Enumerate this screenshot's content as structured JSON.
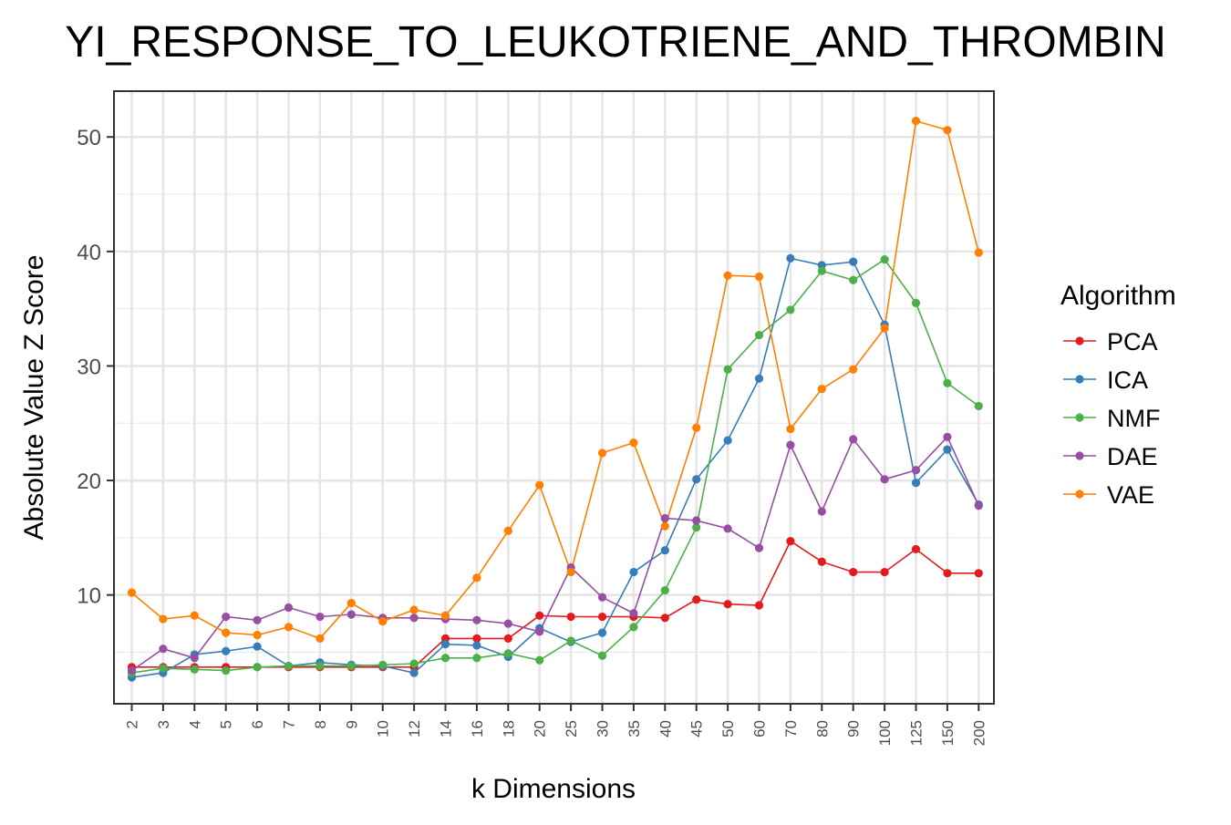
{
  "chart_data": {
    "type": "line",
    "title": "YI_RESPONSE_TO_LEUKOTRIENE_AND_THROMBIN",
    "xlabel": "k Dimensions",
    "ylabel": "Absolute Value Z Score",
    "categories": [
      "2",
      "3",
      "4",
      "5",
      "6",
      "7",
      "8",
      "9",
      "10",
      "12",
      "14",
      "16",
      "18",
      "20",
      "25",
      "30",
      "35",
      "40",
      "45",
      "50",
      "60",
      "70",
      "80",
      "90",
      "100",
      "125",
      "150",
      "200"
    ],
    "y_ticks": [
      10,
      20,
      30,
      40,
      50
    ],
    "ylim": [
      0.5,
      54
    ],
    "grid": true,
    "legend": {
      "title": "Algorithm",
      "position": "right"
    },
    "series": [
      {
        "name": "PCA",
        "color": "#e41a1c",
        "values": [
          3.7,
          3.7,
          3.7,
          3.7,
          3.7,
          3.7,
          3.7,
          3.7,
          3.7,
          3.7,
          6.2,
          6.2,
          6.2,
          8.2,
          8.1,
          8.1,
          8.1,
          8.0,
          9.6,
          9.2,
          9.1,
          14.7,
          12.9,
          12.0,
          12.0,
          14.0,
          11.9,
          11.9
        ]
      },
      {
        "name": "ICA",
        "color": "#377eb8",
        "values": [
          2.8,
          3.2,
          4.8,
          5.1,
          5.5,
          3.8,
          4.1,
          3.9,
          3.8,
          3.2,
          5.7,
          5.6,
          4.6,
          7.1,
          5.9,
          6.7,
          12.0,
          13.9,
          20.1,
          23.5,
          28.9,
          39.4,
          38.8,
          39.1,
          33.6,
          19.8,
          22.7,
          17.9
        ]
      },
      {
        "name": "NMF",
        "color": "#4daf4a",
        "values": [
          3.2,
          3.6,
          3.5,
          3.4,
          3.7,
          3.8,
          3.8,
          3.8,
          3.9,
          4.0,
          4.5,
          4.5,
          4.9,
          4.3,
          6.0,
          4.7,
          7.2,
          10.4,
          15.9,
          29.7,
          32.7,
          34.9,
          38.3,
          37.5,
          39.3,
          35.5,
          28.5,
          26.5
        ]
      },
      {
        "name": "DAE",
        "color": "#984ea3",
        "values": [
          3.4,
          5.3,
          4.5,
          8.1,
          7.8,
          8.9,
          8.1,
          8.3,
          8.0,
          8.0,
          7.9,
          7.8,
          7.5,
          6.8,
          12.4,
          9.8,
          8.4,
          16.7,
          16.5,
          15.8,
          14.1,
          23.1,
          17.3,
          23.6,
          20.1,
          20.9,
          23.8,
          17.8
        ]
      },
      {
        "name": "VAE",
        "color": "#ff7f00",
        "values": [
          10.2,
          7.9,
          8.2,
          6.7,
          6.5,
          7.2,
          6.2,
          9.3,
          7.7,
          8.7,
          8.2,
          11.5,
          15.6,
          19.6,
          12.0,
          22.4,
          23.3,
          16.0,
          24.6,
          37.9,
          37.8,
          24.5,
          28.0,
          29.7,
          33.3,
          51.4,
          50.6,
          39.9
        ]
      }
    ]
  }
}
